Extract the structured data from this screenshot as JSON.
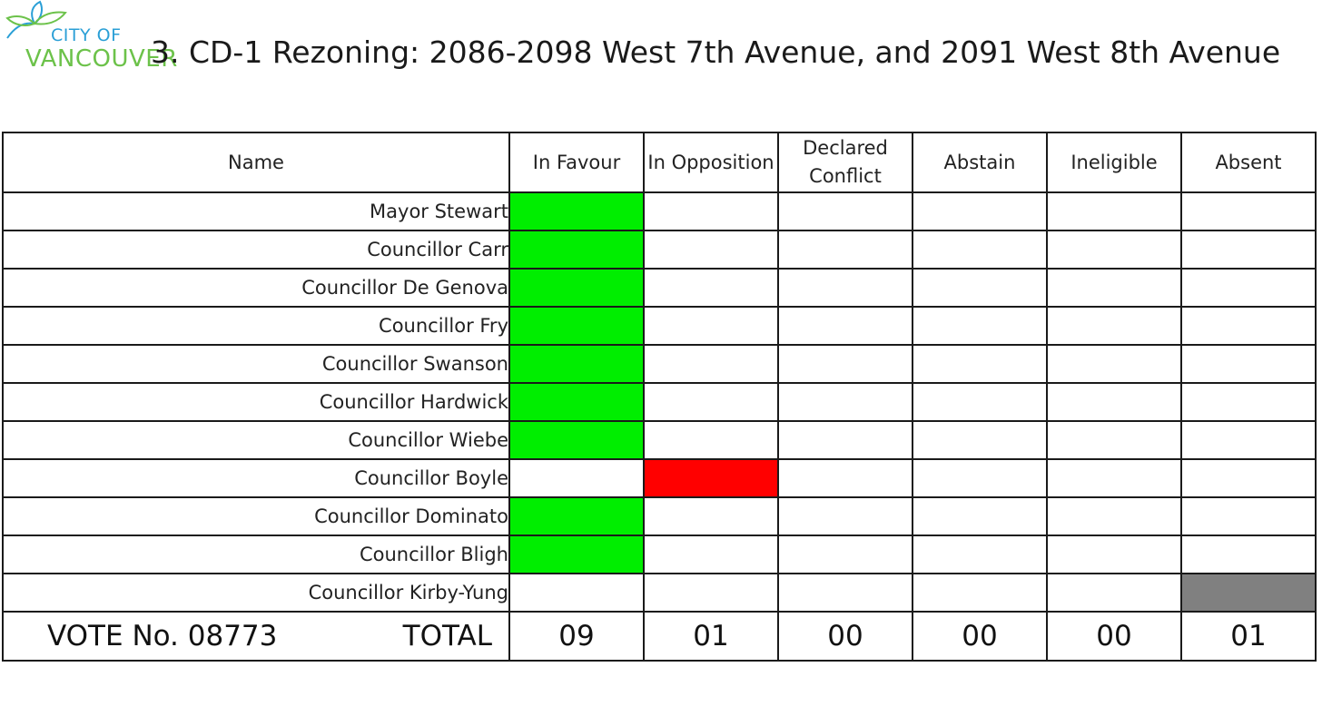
{
  "logo": {
    "line1": "CITY OF",
    "line2": "VANCOUVER"
  },
  "title": "3. CD-1 Rezoning: 2086-2098 West 7th Avenue, and 2091 West 8th Avenue",
  "table": {
    "columns": [
      "Name",
      "In Favour",
      "In Opposition",
      "Declared Conflict",
      "Abstain",
      "Ineligible",
      "Absent"
    ],
    "rows": [
      {
        "name": "Mayor Stewart",
        "vote": "In Favour"
      },
      {
        "name": "Councillor Carr",
        "vote": "In Favour"
      },
      {
        "name": "Councillor De Genova",
        "vote": "In Favour"
      },
      {
        "name": "Councillor Fry",
        "vote": "In Favour"
      },
      {
        "name": "Councillor Swanson",
        "vote": "In Favour"
      },
      {
        "name": "Councillor Hardwick",
        "vote": "In Favour"
      },
      {
        "name": "Councillor Wiebe",
        "vote": "In Favour"
      },
      {
        "name": "Councillor Boyle",
        "vote": "In Opposition"
      },
      {
        "name": "Councillor Dominato",
        "vote": "In Favour"
      },
      {
        "name": "Councillor Bligh",
        "vote": "In Favour"
      },
      {
        "name": "Councillor Kirby-Yung",
        "vote": "Absent"
      }
    ],
    "footer": {
      "vote_number": "VOTE No. 08773",
      "total_label": "TOTAL",
      "totals": [
        "09",
        "01",
        "00",
        "00",
        "00",
        "01"
      ]
    }
  },
  "colors": {
    "in_favour": "#00ee00",
    "in_opposition": "#ff0000",
    "absent": "#808080"
  },
  "icons": [
    "leaf-logo-icon"
  ]
}
